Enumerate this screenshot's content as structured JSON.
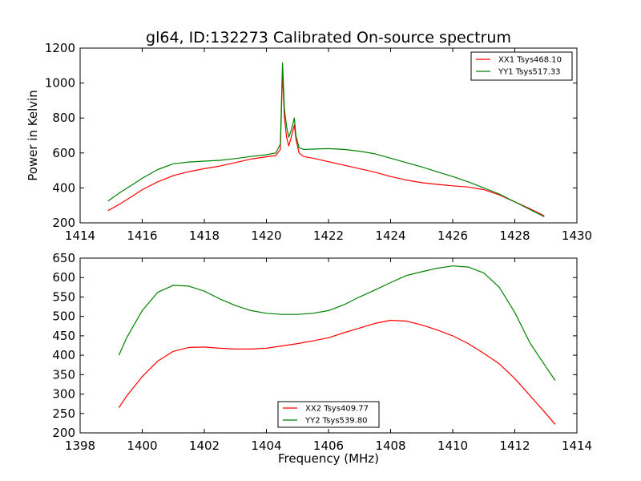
{
  "chart_data": [
    {
      "type": "line",
      "title": "gl64, ID:132273 Calibrated On-source spectrum",
      "xlabel": "",
      "ylabel": "Power in Kelvin",
      "xlim": [
        1414,
        1430
      ],
      "ylim": [
        200,
        1200
      ],
      "xticks": [
        1414,
        1416,
        1418,
        1420,
        1422,
        1424,
        1426,
        1428,
        1430
      ],
      "yticks": [
        200,
        400,
        600,
        800,
        1000,
        1200
      ],
      "legend": "top-right",
      "grid": false,
      "series": [
        {
          "name": "XX1 Tsys468.10",
          "color": "#ff0000",
          "x": [
            1414.9,
            1415.3,
            1415.7,
            1416.0,
            1416.5,
            1417.0,
            1417.5,
            1418.0,
            1418.5,
            1419.0,
            1419.5,
            1420.0,
            1420.3,
            1420.45,
            1420.52,
            1420.58,
            1420.65,
            1420.72,
            1420.8,
            1420.9,
            1420.95,
            1421.05,
            1421.2,
            1421.5,
            1422.0,
            1422.5,
            1423.0,
            1423.5,
            1424.0,
            1424.5,
            1425.0,
            1425.5,
            1426.0,
            1426.5,
            1427.0,
            1427.5,
            1428.0,
            1428.5,
            1428.95
          ],
          "y": [
            270,
            310,
            355,
            390,
            435,
            470,
            493,
            510,
            525,
            545,
            565,
            578,
            585,
            620,
            1060,
            800,
            690,
            640,
            690,
            760,
            680,
            600,
            580,
            570,
            550,
            530,
            510,
            490,
            465,
            445,
            430,
            420,
            412,
            405,
            390,
            360,
            320,
            280,
            240
          ]
        },
        {
          "name": "YY1 Tsys517.33",
          "color": "#008000",
          "x": [
            1414.9,
            1415.3,
            1415.7,
            1416.0,
            1416.5,
            1417.0,
            1417.5,
            1418.0,
            1418.5,
            1419.0,
            1419.5,
            1420.0,
            1420.3,
            1420.45,
            1420.52,
            1420.58,
            1420.65,
            1420.72,
            1420.8,
            1420.9,
            1420.95,
            1421.05,
            1421.2,
            1421.5,
            1422.0,
            1422.5,
            1423.0,
            1423.5,
            1424.0,
            1424.5,
            1425.0,
            1425.5,
            1426.0,
            1426.5,
            1427.0,
            1427.5,
            1428.0,
            1428.5,
            1428.95
          ],
          "y": [
            325,
            375,
            420,
            455,
            505,
            538,
            548,
            553,
            558,
            568,
            580,
            590,
            600,
            650,
            1115,
            850,
            750,
            690,
            730,
            800,
            700,
            630,
            620,
            622,
            625,
            620,
            610,
            595,
            570,
            545,
            520,
            492,
            465,
            435,
            400,
            365,
            320,
            275,
            235
          ]
        }
      ]
    },
    {
      "type": "line",
      "title": "",
      "xlabel": "Frequency (MHz)",
      "ylabel": "",
      "xlim": [
        1398,
        1414
      ],
      "ylim": [
        200,
        650
      ],
      "xticks": [
        1398,
        1400,
        1402,
        1404,
        1406,
        1408,
        1410,
        1412,
        1414
      ],
      "yticks": [
        200,
        250,
        300,
        350,
        400,
        450,
        500,
        550,
        600,
        650
      ],
      "legend": "bottom-center",
      "grid": false,
      "series": [
        {
          "name": "XX2 Tsys409.77",
          "color": "#ff0000",
          "x": [
            1399.25,
            1399.5,
            1400.0,
            1400.5,
            1401.0,
            1401.5,
            1402.0,
            1402.5,
            1403.0,
            1403.5,
            1404.0,
            1404.5,
            1405.0,
            1405.5,
            1406.0,
            1406.5,
            1407.0,
            1407.5,
            1408.0,
            1408.5,
            1409.0,
            1409.5,
            1410.0,
            1410.5,
            1411.0,
            1411.5,
            1412.0,
            1412.5,
            1413.0,
            1413.3
          ],
          "y": [
            265,
            295,
            345,
            385,
            410,
            420,
            421,
            418,
            416,
            416,
            418,
            424,
            430,
            437,
            445,
            458,
            470,
            482,
            490,
            488,
            478,
            465,
            450,
            430,
            405,
            378,
            340,
            295,
            250,
            222
          ]
        },
        {
          "name": "YY2 Tsys539.80",
          "color": "#008000",
          "x": [
            1399.25,
            1399.5,
            1400.0,
            1400.5,
            1401.0,
            1401.5,
            1402.0,
            1402.5,
            1403.0,
            1403.5,
            1404.0,
            1404.5,
            1405.0,
            1405.5,
            1406.0,
            1406.5,
            1407.0,
            1407.5,
            1408.0,
            1408.5,
            1409.0,
            1409.5,
            1410.0,
            1410.5,
            1411.0,
            1411.5,
            1412.0,
            1412.5,
            1413.0,
            1413.3
          ],
          "y": [
            400,
            445,
            515,
            562,
            580,
            578,
            565,
            545,
            528,
            515,
            508,
            505,
            505,
            508,
            515,
            530,
            550,
            568,
            587,
            605,
            615,
            624,
            630,
            627,
            612,
            575,
            510,
            430,
            370,
            335
          ]
        }
      ]
    }
  ]
}
